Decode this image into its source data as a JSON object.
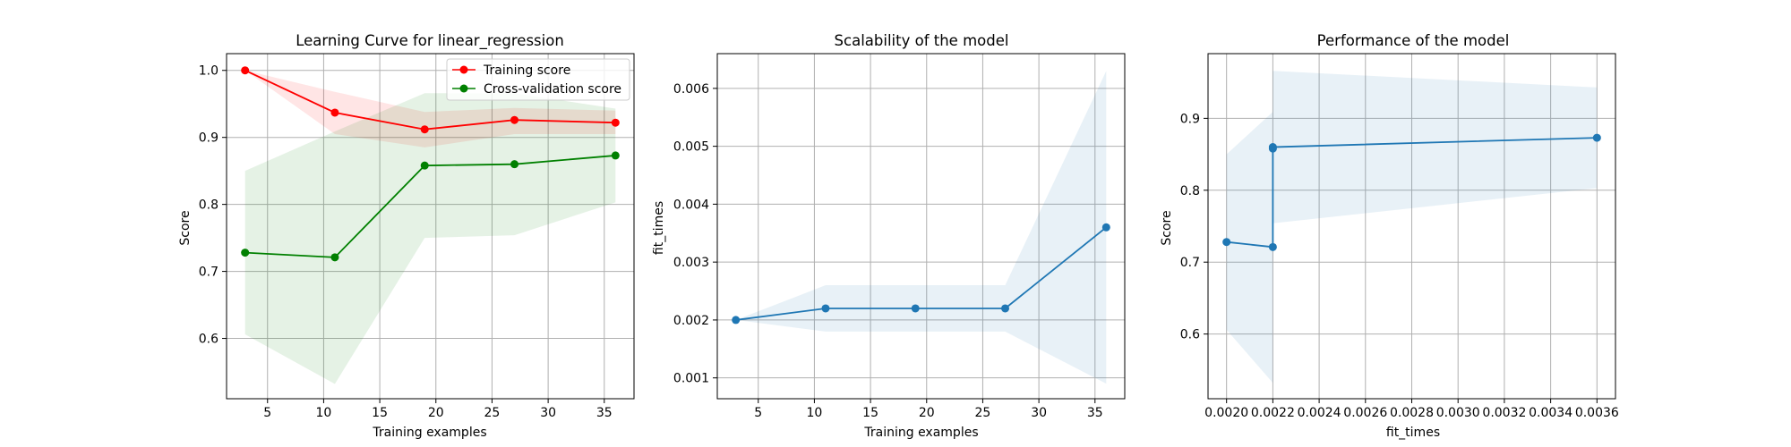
{
  "chart_data": [
    {
      "type": "line",
      "title": "Learning Curve for linear_regression",
      "xlabel": "Training examples",
      "ylabel": "Score",
      "xlim": [
        1.35,
        37.65
      ],
      "ylim": [
        0.51,
        1.025
      ],
      "xticks": [
        5,
        10,
        15,
        20,
        25,
        30,
        35
      ],
      "yticks": [
        0.6,
        0.7,
        0.8,
        0.9,
        1.0
      ],
      "xtick_labels": [
        "5",
        "10",
        "15",
        "20",
        "25",
        "30",
        "35"
      ],
      "ytick_labels": [
        "0.6",
        "0.7",
        "0.8",
        "0.9",
        "1.0"
      ],
      "grid": true,
      "legend": "top-right",
      "x": [
        3,
        11,
        19,
        27,
        36
      ],
      "series": [
        {
          "name": "Training score",
          "color": "#ff0000",
          "fill": "#ff0000",
          "marker": "circle",
          "values": [
            1.0,
            0.937,
            0.912,
            0.926,
            0.922
          ],
          "band_lower": [
            1.0,
            0.905,
            0.885,
            0.905,
            0.905
          ],
          "band_upper": [
            1.0,
            0.968,
            0.938,
            0.944,
            0.94
          ]
        },
        {
          "name": "Cross-validation score",
          "color": "#008000",
          "fill": "#008000",
          "marker": "circle",
          "values": [
            0.728,
            0.721,
            0.858,
            0.86,
            0.873
          ],
          "band_lower": [
            0.606,
            0.532,
            0.75,
            0.754,
            0.803
          ],
          "band_upper": [
            0.85,
            0.909,
            0.966,
            0.966,
            0.943
          ]
        }
      ]
    },
    {
      "type": "line",
      "title": "Scalability of the model",
      "xlabel": "Training examples",
      "ylabel": "fit_times",
      "xlim": [
        1.35,
        37.65
      ],
      "ylim": [
        0.00064,
        0.0066
      ],
      "xticks": [
        5,
        10,
        15,
        20,
        25,
        30,
        35
      ],
      "yticks": [
        0.001,
        0.002,
        0.003,
        0.004,
        0.005,
        0.006
      ],
      "xtick_labels": [
        "5",
        "10",
        "15",
        "20",
        "25",
        "30",
        "35"
      ],
      "ytick_labels": [
        "0.001",
        "0.002",
        "0.003",
        "0.004",
        "0.005",
        "0.006"
      ],
      "grid": true,
      "x": [
        3,
        11,
        19,
        27,
        36
      ],
      "series": [
        {
          "color": "#1f77b4",
          "fill": "#1f77b4",
          "marker": "circle",
          "values": [
            0.002,
            0.0022,
            0.0022,
            0.0022,
            0.0036
          ],
          "band_lower": [
            0.002,
            0.0018,
            0.0018,
            0.0018,
            0.0009
          ],
          "band_upper": [
            0.002,
            0.0026,
            0.0026,
            0.0026,
            0.0063
          ]
        }
      ]
    },
    {
      "type": "line",
      "title": "Performance of the model",
      "xlabel": "fit_times",
      "ylabel": "Score",
      "xlim": [
        0.00192,
        0.00368
      ],
      "ylim": [
        0.51,
        0.99
      ],
      "xticks": [
        0.002,
        0.0022,
        0.0024,
        0.0026,
        0.0028,
        0.003,
        0.0032,
        0.0034,
        0.0036
      ],
      "yticks": [
        0.6,
        0.7,
        0.8,
        0.9
      ],
      "xtick_labels": [
        "0.0020",
        "0.0022",
        "0.0024",
        "0.0026",
        "0.0028",
        "0.0030",
        "0.0032",
        "0.0034",
        "0.0036"
      ],
      "ytick_labels": [
        "0.6",
        "0.7",
        "0.8",
        "0.9"
      ],
      "grid": true,
      "x": [
        0.002,
        0.0022,
        0.0022,
        0.0022,
        0.0036
      ],
      "series": [
        {
          "color": "#1f77b4",
          "fill": "#1f77b4",
          "marker": "circle",
          "values": [
            0.728,
            0.721,
            0.858,
            0.86,
            0.873
          ],
          "band_lower": [
            0.606,
            0.532,
            0.75,
            0.754,
            0.803
          ],
          "band_upper": [
            0.85,
            0.909,
            0.966,
            0.966,
            0.943
          ]
        }
      ]
    }
  ]
}
